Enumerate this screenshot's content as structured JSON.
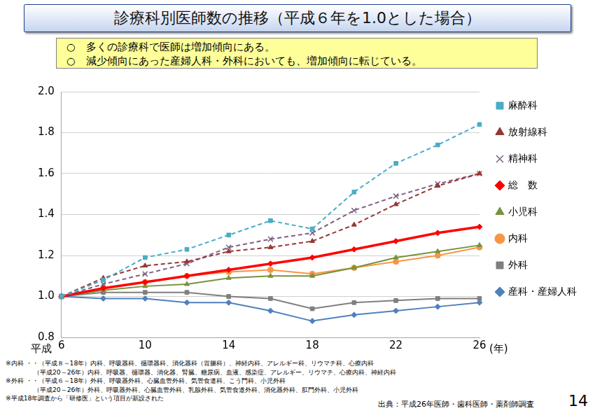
{
  "title": "診療科別医師数の推移（平成６年を1.0とした場合）",
  "summary": [
    "○　多くの診療科で医師は増加傾向にある。",
    "○　減少傾向にあった産婦人科・外科においても、増加傾向に転じている。"
  ],
  "chart_data": {
    "type": "line",
    "xlabel_left": "平成",
    "xlabel_right": "(年)",
    "x": [
      6,
      8,
      10,
      12,
      14,
      16,
      18,
      20,
      22,
      24,
      26
    ],
    "xlim": [
      6,
      26
    ],
    "xticks": [
      6,
      10,
      14,
      18,
      22,
      26
    ],
    "ylim": [
      0.8,
      2.0
    ],
    "yticks": [
      {
        "value": 0.8,
        "label": "0.8"
      },
      {
        "value": 1.0,
        "label": "1.0"
      },
      {
        "value": 1.2,
        "label": "1.2"
      },
      {
        "value": 1.4,
        "label": "1.4"
      },
      {
        "value": 1.6,
        "label": "1.6"
      },
      {
        "value": 1.8,
        "label": "1.8"
      },
      {
        "value": 2.0,
        "label": "2.0"
      }
    ],
    "grid": true,
    "legend": "right",
    "series": [
      {
        "name": "麻酔科",
        "color": "#4bacc6",
        "marker": "square",
        "line_style": "dashed",
        "values": [
          1.0,
          1.08,
          1.19,
          1.23,
          1.3,
          1.37,
          1.33,
          1.51,
          1.65,
          1.74,
          1.84
        ]
      },
      {
        "name": "放射線科",
        "color": "#953735",
        "marker": "triangle",
        "line_style": "dashed",
        "values": [
          1.0,
          1.09,
          1.15,
          1.17,
          1.22,
          1.24,
          1.27,
          1.35,
          1.45,
          1.54,
          1.6
        ]
      },
      {
        "name": "精神科",
        "color": "#7f6084",
        "marker": "cross",
        "line_style": "dashed",
        "values": [
          1.0,
          1.06,
          1.11,
          1.16,
          1.24,
          1.28,
          1.31,
          1.42,
          1.49,
          1.55,
          1.6
        ]
      },
      {
        "name": "総　数",
        "color": "#ff0000",
        "marker": "diamond",
        "line_style": "thick",
        "values": [
          1.0,
          1.04,
          1.07,
          1.1,
          1.13,
          1.16,
          1.19,
          1.23,
          1.27,
          1.31,
          1.34
        ]
      },
      {
        "name": "小児科",
        "color": "#77933c",
        "marker": "triangle",
        "line_style": "solid",
        "values": [
          1.0,
          1.03,
          1.05,
          1.06,
          1.09,
          1.1,
          1.1,
          1.14,
          1.19,
          1.22,
          1.25
        ]
      },
      {
        "name": "内科",
        "color": "#f79646",
        "marker": "circle",
        "line_style": "solid",
        "values": [
          1.0,
          1.04,
          1.07,
          1.1,
          1.12,
          1.13,
          1.11,
          1.14,
          1.17,
          1.2,
          1.24
        ]
      },
      {
        "name": "外科",
        "color": "#7f7f7f",
        "marker": "square",
        "line_style": "solid",
        "values": [
          1.0,
          1.02,
          1.02,
          1.02,
          1.0,
          0.99,
          0.94,
          0.97,
          0.98,
          0.99,
          0.99
        ]
      },
      {
        "name": "産科・産婦人科",
        "color": "#4f81bd",
        "marker": "diamond",
        "line_style": "solid",
        "values": [
          1.0,
          0.99,
          0.99,
          0.97,
          0.97,
          0.93,
          0.88,
          0.91,
          0.93,
          0.95,
          0.97
        ]
      }
    ]
  },
  "notes": [
    "※内科 ・・（平成８～18年）内科、呼吸器科、循環器科、消化器科（胃腸科）、神経内科、アレルギー科、リウマチ科、心療内科",
    "（平成20～26年）内科、呼吸器、循環器、消化器、腎臓、糖尿病、血液、感染症、アレルギー、リウマチ、心療内科、神経内科",
    "※外科 ・・（平成６～18年）外科、呼吸器外科、心臓血管外科、気管食道科、こう門科、小児外科",
    "（平成20～26年）外科、呼吸器外科、心臓血管外科、乳腺外科、気管食道外科、消化器外科、肛門外科、小児外科",
    "※平成18年調査から「研修医」という項目が新設された"
  ],
  "source": "出典：平成26年医師・歯科医師・薬剤師調査",
  "page": "14"
}
